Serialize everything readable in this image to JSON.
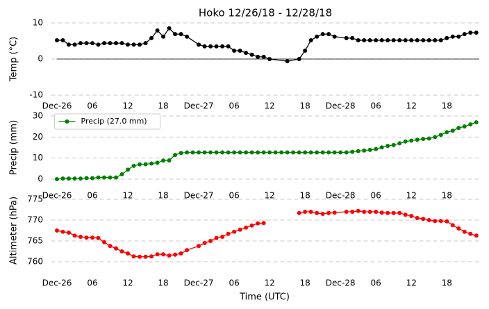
{
  "chart_data": [
    {
      "type": "line",
      "title": "Hoko 12/26/18 - 12/28/18",
      "y_label": "Temp (°C)",
      "color": "#000000",
      "x": [
        0,
        1,
        2,
        3,
        4,
        5,
        6,
        7,
        8,
        9,
        10,
        11,
        12,
        13,
        14,
        15,
        16,
        17,
        18,
        19,
        20,
        21,
        22,
        24,
        25,
        26,
        27,
        28,
        29,
        30,
        31,
        32,
        33,
        34,
        35,
        36,
        39,
        41,
        42,
        43,
        44,
        45,
        46,
        47,
        49,
        50,
        51,
        52,
        53,
        54,
        55,
        56,
        57,
        58,
        59,
        60,
        61,
        62,
        63,
        64,
        65,
        66,
        67,
        68,
        69,
        70,
        71
      ],
      "values": [
        5.2,
        5.2,
        4,
        4,
        4.4,
        4.4,
        4.4,
        4,
        4.4,
        4.4,
        4.4,
        4.4,
        4,
        4,
        4,
        4.4,
        5.8,
        7.9,
        6.2,
        8.5,
        6.9,
        6.9,
        6.2,
        4,
        3.5,
        3.5,
        3.5,
        3.5,
        3.5,
        2.3,
        2.3,
        1.7,
        1.2,
        0.6,
        0.6,
        0,
        -0.6,
        0,
        2.3,
        5.2,
        6.2,
        6.9,
        6.9,
        6.2,
        5.8,
        5.8,
        5.2,
        5.2,
        5.2,
        5.2,
        5.2,
        5.2,
        5.2,
        5.2,
        5.2,
        5.2,
        5.2,
        5.2,
        5.2,
        5.2,
        5.2,
        5.8,
        6.2,
        6.2,
        6.9,
        7.3,
        7.3
      ],
      "reference_line": 0,
      "xlim": [
        -1,
        71.5
      ],
      "ylim": [
        -10,
        10
      ],
      "yticks": [
        -10,
        0,
        10
      ],
      "xticks": [
        {
          "value": 0,
          "label": "Dec-26"
        },
        {
          "value": 6,
          "label": "06"
        },
        {
          "value": 12,
          "label": "12"
        },
        {
          "value": 18,
          "label": "18"
        },
        {
          "value": 24,
          "label": "Dec-27"
        },
        {
          "value": 30,
          "label": "06"
        },
        {
          "value": 36,
          "label": "12"
        },
        {
          "value": 42,
          "label": "18"
        },
        {
          "value": 48,
          "label": "Dec-28"
        },
        {
          "value": 54,
          "label": "06"
        },
        {
          "value": 60,
          "label": "12"
        },
        {
          "value": 66,
          "label": "18"
        }
      ],
      "grid": true
    },
    {
      "type": "line",
      "y_label": "Precip (mm)",
      "legend": "upper left",
      "x": [
        0,
        1,
        2,
        3,
        4,
        5,
        6,
        7,
        8,
        9,
        10,
        11,
        12,
        13,
        14,
        15,
        16,
        17,
        18,
        19,
        20,
        21,
        22,
        23,
        24,
        25,
        26,
        27,
        28,
        29,
        30,
        31,
        32,
        33,
        34,
        35,
        36,
        37,
        38,
        39,
        40,
        41,
        42,
        43,
        44,
        45,
        46,
        47,
        48,
        49,
        50,
        51,
        52,
        53,
        54,
        55,
        56,
        57,
        58,
        59,
        60,
        61,
        62,
        63,
        64,
        65,
        66,
        67,
        68,
        69,
        70,
        71
      ],
      "series": [
        {
          "name": "Precip (27.0 mm)",
          "color": "#008000",
          "values": [
            0,
            0.3,
            0.3,
            0.3,
            0.3,
            0.5,
            0.5,
            0.8,
            0.8,
            0.8,
            0.8,
            2.3,
            4.5,
            6.3,
            7.0,
            7.1,
            7.4,
            7.8,
            8.8,
            8.9,
            11.5,
            12.4,
            12.7,
            12.7,
            12.7,
            12.7,
            12.7,
            12.7,
            12.7,
            12.7,
            12.7,
            12.7,
            12.7,
            12.7,
            12.7,
            12.7,
            12.7,
            12.7,
            12.7,
            12.7,
            12.7,
            12.7,
            12.7,
            12.7,
            12.7,
            12.7,
            12.7,
            12.7,
            12.7,
            12.7,
            13.0,
            13.3,
            13.6,
            13.9,
            14.3,
            15.1,
            15.8,
            16.2,
            17.0,
            17.9,
            18.3,
            18.7,
            19.1,
            19.3,
            20.0,
            21.0,
            22.3,
            23.0,
            24.3,
            25.0,
            26.0,
            27.0
          ]
        }
      ],
      "xlim": [
        -1,
        71.5
      ],
      "ylim": [
        0,
        30
      ],
      "yticks": [
        0,
        10,
        20,
        30
      ],
      "xticks": [
        {
          "value": 0,
          "label": "Dec-26"
        },
        {
          "value": 6,
          "label": "06"
        },
        {
          "value": 12,
          "label": "12"
        },
        {
          "value": 18,
          "label": "18"
        },
        {
          "value": 24,
          "label": "Dec-27"
        },
        {
          "value": 30,
          "label": "06"
        },
        {
          "value": 36,
          "label": "12"
        },
        {
          "value": 42,
          "label": "18"
        },
        {
          "value": 48,
          "label": "Dec-28"
        },
        {
          "value": 54,
          "label": "06"
        },
        {
          "value": 60,
          "label": "12"
        },
        {
          "value": 66,
          "label": "18"
        }
      ],
      "grid": true
    },
    {
      "type": "line",
      "y_label": "Altimeter (hPa)",
      "x_label": "Time (UTC)",
      "color": "#ff0000",
      "x": [
        0,
        1,
        2,
        3,
        4,
        5,
        6,
        7,
        8,
        9,
        10,
        11,
        12,
        13,
        14,
        15,
        16,
        17,
        18,
        19,
        20,
        21,
        22,
        24,
        25,
        26,
        27,
        28,
        29,
        30,
        31,
        32,
        33,
        34,
        35,
        36,
        37,
        38,
        39,
        40,
        41,
        42,
        43,
        44,
        45,
        46,
        47,
        49,
        50,
        51,
        52,
        53,
        54,
        55,
        56,
        57,
        58,
        59,
        60,
        61,
        62,
        63,
        64,
        65,
        66,
        67,
        68,
        69,
        70,
        71
      ],
      "values": [
        767.5,
        767.2,
        767.0,
        766.3,
        766.0,
        765.8,
        765.8,
        765.7,
        764.7,
        763.8,
        763.2,
        762.5,
        762.0,
        761.3,
        761.2,
        761.2,
        761.3,
        761.8,
        761.8,
        761.5,
        761.7,
        762.0,
        762.8,
        763.8,
        764.5,
        765.0,
        765.7,
        766.0,
        766.7,
        767.2,
        767.7,
        768.2,
        768.7,
        769.2,
        769.3,
        null,
        null,
        null,
        null,
        null,
        771.7,
        772.0,
        772.0,
        771.7,
        771.5,
        771.7,
        771.8,
        772.0,
        772.0,
        772.2,
        772.0,
        772.0,
        772.0,
        771.8,
        771.7,
        771.7,
        771.7,
        771.3,
        771.0,
        770.5,
        770.3,
        770.0,
        769.8,
        769.8,
        769.7,
        768.8,
        768.0,
        767.2,
        766.7,
        766.3
      ],
      "xlim": [
        -1,
        71.5
      ],
      "ylim": [
        760,
        775
      ],
      "yticks": [
        760,
        765,
        770,
        775
      ],
      "xticks": [
        {
          "value": 0,
          "label": "Dec-26"
        },
        {
          "value": 6,
          "label": "06"
        },
        {
          "value": 12,
          "label": "12"
        },
        {
          "value": 18,
          "label": "18"
        },
        {
          "value": 24,
          "label": "Dec-27"
        },
        {
          "value": 30,
          "label": "06"
        },
        {
          "value": 36,
          "label": "12"
        },
        {
          "value": 42,
          "label": "18"
        },
        {
          "value": 48,
          "label": "Dec-28"
        },
        {
          "value": 54,
          "label": "06"
        },
        {
          "value": 60,
          "label": "12"
        },
        {
          "value": 66,
          "label": "18"
        }
      ],
      "grid": true
    }
  ]
}
